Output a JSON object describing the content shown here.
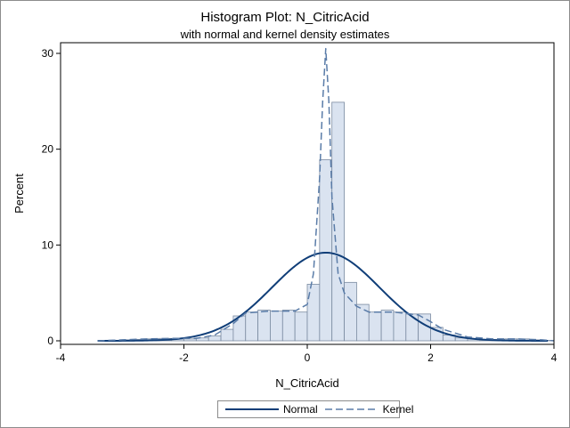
{
  "header": {
    "title": "Histogram Plot: N_CitricAcid",
    "subtitle": "with normal and kernel density estimates"
  },
  "colors": {
    "bar_fill": "#dae3f0",
    "bar_stroke": "#7a8aa0",
    "normal_line": "#103e78",
    "kernel_line": "#5a7ca8",
    "axis": "#000000"
  },
  "legend": {
    "normal_label": "Normal",
    "kernel_label": "Kernel"
  },
  "chart_data": {
    "type": "bar",
    "title": "Histogram Plot: N_CitricAcid",
    "subtitle": "with normal and kernel density estimates",
    "xlabel": "N_CitricAcid",
    "ylabel": "Percent",
    "xlim": [
      -4,
      4
    ],
    "ylim": [
      0,
      30
    ],
    "xticks": [
      -4,
      -2,
      0,
      2,
      4
    ],
    "yticks": [
      0,
      10,
      20,
      30
    ],
    "grid": false,
    "legend_position": "bottom",
    "bin_width": 0.2,
    "bins": [
      {
        "x0": -3.4,
        "x1": -3.2,
        "value": 0.0
      },
      {
        "x0": -3.2,
        "x1": -3.0,
        "value": 0.05
      },
      {
        "x0": -3.0,
        "x1": -2.8,
        "value": 0.1
      },
      {
        "x0": -2.8,
        "x1": -2.6,
        "value": 0.15
      },
      {
        "x0": -2.6,
        "x1": -2.4,
        "value": 0.2
      },
      {
        "x0": -2.4,
        "x1": -2.2,
        "value": 0.25
      },
      {
        "x0": -2.2,
        "x1": -2.0,
        "value": 0.2
      },
      {
        "x0": -2.0,
        "x1": -1.8,
        "value": 0.2
      },
      {
        "x0": -1.8,
        "x1": -1.6,
        "value": 0.3
      },
      {
        "x0": -1.6,
        "x1": -1.4,
        "value": 0.5
      },
      {
        "x0": -1.4,
        "x1": -1.2,
        "value": 1.2
      },
      {
        "x0": -1.2,
        "x1": -1.0,
        "value": 2.6
      },
      {
        "x0": -1.0,
        "x1": -0.8,
        "value": 3.0
      },
      {
        "x0": -0.8,
        "x1": -0.6,
        "value": 3.2
      },
      {
        "x0": -0.6,
        "x1": -0.4,
        "value": 3.1
      },
      {
        "x0": -0.4,
        "x1": -0.2,
        "value": 3.2
      },
      {
        "x0": -0.2,
        "x1": 0.0,
        "value": 3.0
      },
      {
        "x0": 0.0,
        "x1": 0.2,
        "value": 5.9
      },
      {
        "x0": 0.2,
        "x1": 0.4,
        "value": 18.9
      },
      {
        "x0": 0.4,
        "x1": 0.6,
        "value": 24.9
      },
      {
        "x0": 0.6,
        "x1": 0.8,
        "value": 6.1
      },
      {
        "x0": 0.8,
        "x1": 1.0,
        "value": 3.8
      },
      {
        "x0": 1.0,
        "x1": 1.2,
        "value": 3.0
      },
      {
        "x0": 1.2,
        "x1": 1.4,
        "value": 3.2
      },
      {
        "x0": 1.4,
        "x1": 1.6,
        "value": 3.0
      },
      {
        "x0": 1.6,
        "x1": 1.8,
        "value": 2.8
      },
      {
        "x0": 1.8,
        "x1": 2.0,
        "value": 2.8
      },
      {
        "x0": 2.0,
        "x1": 2.2,
        "value": 1.4
      },
      {
        "x0": 2.2,
        "x1": 2.4,
        "value": 0.6
      },
      {
        "x0": 2.4,
        "x1": 2.6,
        "value": 0.3
      },
      {
        "x0": 2.6,
        "x1": 2.8,
        "value": 0.2
      },
      {
        "x0": 2.8,
        "x1": 3.0,
        "value": 0.15
      },
      {
        "x0": 3.0,
        "x1": 3.2,
        "value": 0.15
      },
      {
        "x0": 3.2,
        "x1": 3.4,
        "value": 0.2
      },
      {
        "x0": 3.4,
        "x1": 3.6,
        "value": 0.2
      },
      {
        "x0": 3.6,
        "x1": 3.8,
        "value": 0.1
      },
      {
        "x0": 3.8,
        "x1": 4.0,
        "value": 0.05
      }
    ],
    "normal": {
      "mean": 0.3,
      "peak": 9.2,
      "sd": 0.87,
      "x_range": [
        -3.4,
        3.9
      ]
    },
    "series": [
      {
        "name": "Normal",
        "x": [
          -3.4,
          -3.0,
          -2.6,
          -2.2,
          -1.8,
          -1.4,
          -1.0,
          -0.6,
          -0.2,
          0.1,
          0.3,
          0.5,
          0.8,
          1.2,
          1.6,
          2.0,
          2.4,
          2.8,
          3.2,
          3.6,
          3.9
        ],
        "values": [
          0.0,
          0.0,
          0.02,
          0.1,
          0.5,
          1.4,
          3.0,
          5.4,
          7.9,
          9.0,
          9.2,
          9.0,
          7.9,
          5.4,
          3.0,
          1.4,
          0.5,
          0.1,
          0.02,
          0.0,
          0.0
        ]
      },
      {
        "name": "Kernel",
        "x": [
          -3.4,
          -3.0,
          -2.6,
          -2.2,
          -1.8,
          -1.5,
          -1.2,
          -1.0,
          -0.6,
          -0.2,
          0.0,
          0.1,
          0.2,
          0.25,
          0.3,
          0.35,
          0.4,
          0.5,
          0.6,
          0.8,
          1.0,
          1.4,
          1.8,
          2.0,
          2.2,
          2.6,
          3.0,
          3.4,
          3.8,
          4.0
        ],
        "values": [
          0.0,
          0.1,
          0.2,
          0.25,
          0.25,
          0.6,
          1.8,
          2.9,
          3.1,
          3.1,
          3.8,
          7.0,
          17.0,
          25.0,
          30.5,
          25.0,
          15.0,
          7.0,
          5.0,
          3.6,
          3.0,
          3.0,
          2.7,
          2.0,
          1.2,
          0.4,
          0.2,
          0.2,
          0.1,
          0.0
        ]
      }
    ]
  }
}
